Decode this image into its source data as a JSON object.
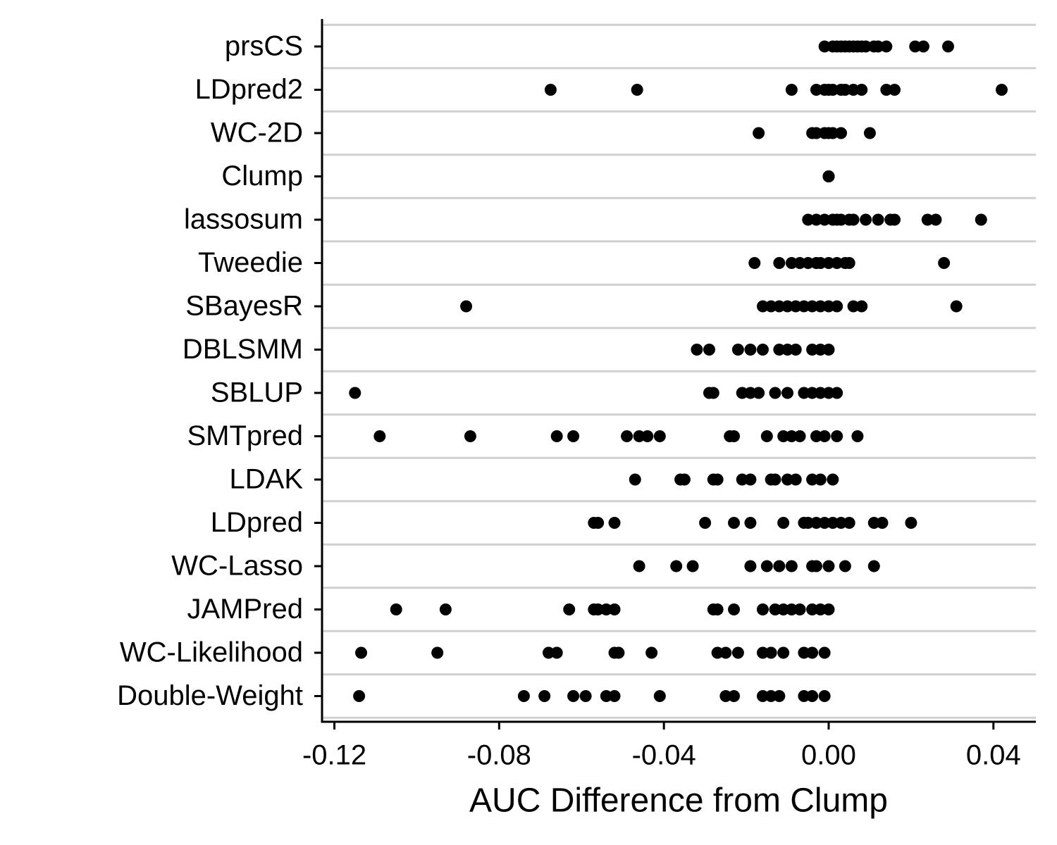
{
  "chart_data": {
    "type": "strip",
    "x_label": "AUC Difference from Clump",
    "categories": [
      "prsCS",
      "LDpred2",
      "WC-2D",
      "Clump",
      "lassosum",
      "Tweedie",
      "SBayesR",
      "DBLSMM",
      "SBLUP",
      "SMTpred",
      "LDAK",
      "LDpred",
      "WC-Lasso",
      "JAMPred",
      "WC-Likelihood",
      "Double-Weight"
    ],
    "values": [
      [
        -0.001,
        0.001,
        0.002,
        0.003,
        0.004,
        0.005,
        0.006,
        0.007,
        0.008,
        0.009,
        0.011,
        0.012,
        0.014,
        0.021,
        0.023,
        0.029
      ],
      [
        -0.0675,
        -0.0465,
        -0.009,
        -0.003,
        -0.001,
        0,
        0.001,
        0.003,
        0.004,
        0.006,
        0.008,
        0.014,
        0.016,
        0.042
      ],
      [
        -0.017,
        -0.004,
        -0.003,
        -0.001,
        0,
        0.001,
        0.003,
        0.01
      ],
      [
        0,
        0,
        0
      ],
      [
        -0.005,
        -0.003,
        -0.001,
        0.001,
        0.002,
        0.003,
        0.005,
        0.006,
        0.009,
        0.012,
        0.015,
        0.016,
        0.024,
        0.026,
        0.037
      ],
      [
        -0.018,
        -0.012,
        -0.009,
        -0.007,
        -0.005,
        -0.003,
        -0.002,
        0,
        0.002,
        0.004,
        0.005,
        0.028
      ],
      [
        -0.088,
        -0.016,
        -0.014,
        -0.012,
        -0.01,
        -0.008,
        -0.006,
        -0.004,
        -0.002,
        0,
        0.002,
        0.006,
        0.008,
        0.031
      ],
      [
        -0.032,
        -0.029,
        -0.022,
        -0.019,
        -0.016,
        -0.012,
        -0.01,
        -0.008,
        -0.004,
        -0.002,
        0
      ],
      [
        -0.115,
        -0.029,
        -0.028,
        -0.021,
        -0.019,
        -0.017,
        -0.013,
        -0.01,
        -0.006,
        -0.004,
        -0.002,
        0,
        0.002
      ],
      [
        -0.109,
        -0.087,
        -0.066,
        -0.062,
        -0.049,
        -0.046,
        -0.044,
        -0.041,
        -0.024,
        -0.023,
        -0.015,
        -0.011,
        -0.009,
        -0.007,
        -0.003,
        -0.001,
        0.002,
        0.007
      ],
      [
        -0.047,
        -0.036,
        -0.035,
        -0.028,
        -0.027,
        -0.021,
        -0.019,
        -0.014,
        -0.013,
        -0.01,
        -0.008,
        -0.004,
        -0.002,
        0.001
      ],
      [
        -0.057,
        -0.056,
        -0.052,
        -0.03,
        -0.023,
        -0.019,
        -0.011,
        -0.006,
        -0.005,
        -0.003,
        -0.001,
        0.001,
        0.003,
        0.005,
        0.011,
        0.013,
        0.02
      ],
      [
        -0.046,
        -0.037,
        -0.033,
        -0.019,
        -0.015,
        -0.012,
        -0.009,
        -0.004,
        -0.003,
        0,
        0.004,
        0.011
      ],
      [
        -0.105,
        -0.093,
        -0.063,
        -0.057,
        -0.056,
        -0.054,
        -0.052,
        -0.028,
        -0.027,
        -0.023,
        -0.016,
        -0.013,
        -0.011,
        -0.009,
        -0.007,
        -0.004,
        -0.002,
        0
      ],
      [
        -0.1135,
        -0.095,
        -0.068,
        -0.066,
        -0.052,
        -0.051,
        -0.043,
        -0.027,
        -0.025,
        -0.022,
        -0.016,
        -0.014,
        -0.011,
        -0.006,
        -0.004,
        -0.001
      ],
      [
        -0.114,
        -0.074,
        -0.069,
        -0.062,
        -0.059,
        -0.054,
        -0.052,
        -0.041,
        -0.025,
        -0.023,
        -0.016,
        -0.014,
        -0.012,
        -0.006,
        -0.004,
        -0.001
      ]
    ],
    "color": "#000000",
    "xlim": [
      -0.123,
      0.0503
    ],
    "xticks": [
      -0.12,
      -0.08,
      -0.04,
      {
        "value": 0,
        "label": "0.00"
      },
      0.04
    ],
    "grid": true
  }
}
